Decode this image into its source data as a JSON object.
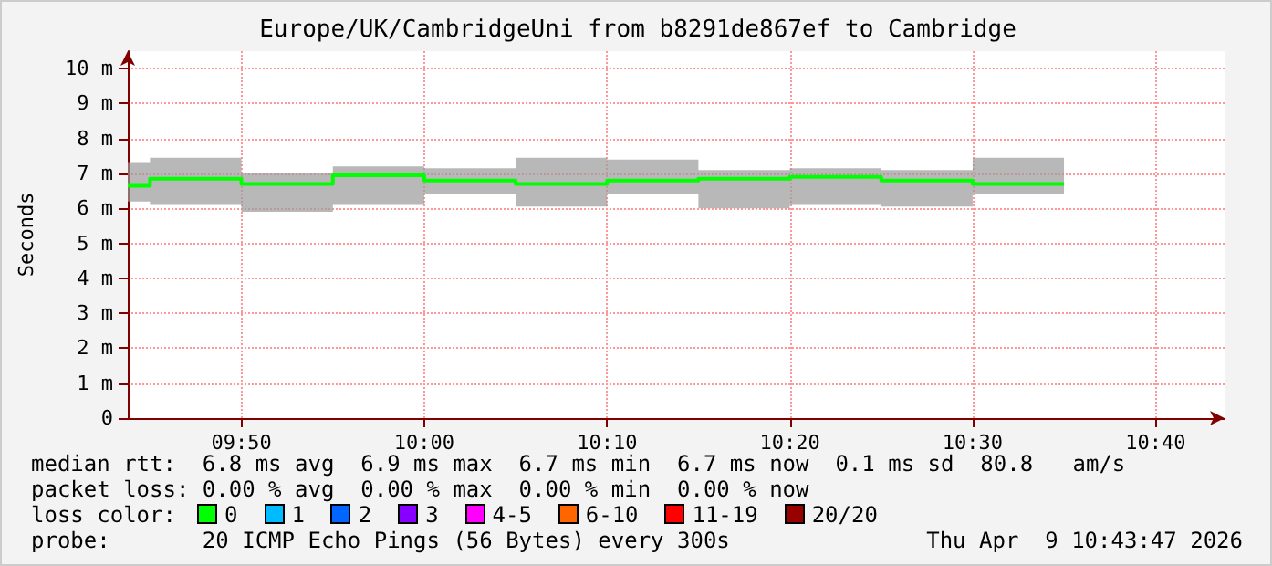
{
  "chart_data": {
    "type": "step",
    "title": "Europe/UK/CambridgeUni from b8291de867ef to Cambridge",
    "ylabel": "Seconds",
    "x": [
      9.7297,
      9.75,
      9.8333,
      9.9167,
      10,
      10.0833,
      10.1667,
      10.25,
      10.3333,
      10.4167,
      10.5,
      10.5833
    ],
    "series": [
      {
        "color": "#00ff00",
        "values": [
          6.65,
          6.85,
          6.7,
          6.95,
          6.8,
          6.7,
          6.8,
          6.85,
          6.9,
          6.8,
          6.7,
          6.7
        ],
        "lower": [
          6.2,
          6.1,
          5.9,
          6.1,
          6.4,
          6.05,
          6.4,
          6.0,
          6.1,
          6.05,
          6.4,
          6.4
        ],
        "upper": [
          7.3,
          7.45,
          7.0,
          7.2,
          7.15,
          7.45,
          7.4,
          7.1,
          7.15,
          7.1,
          7.45,
          7.45
        ]
      }
    ],
    "xlim": [
      9.7297,
      10.7297
    ],
    "xticks": [
      {
        "value": 9.8333,
        "label": "09:50"
      },
      {
        "value": 10,
        "label": "10:00"
      },
      {
        "value": 10.1667,
        "label": "10:10"
      },
      {
        "value": 10.3333,
        "label": "10:20"
      },
      {
        "value": 10.5,
        "label": "10:30"
      },
      {
        "value": 10.6667,
        "label": "10:40"
      }
    ],
    "ylim": [
      0,
      10.5
    ],
    "yticks": [
      0,
      {
        "value": 1,
        "label": "1 m"
      },
      {
        "value": 2,
        "label": "2 m"
      },
      {
        "value": 3,
        "label": "3 m"
      },
      {
        "value": 4,
        "label": "4 m"
      },
      {
        "value": 5,
        "label": "5 m"
      },
      {
        "value": 6,
        "label": "6 m"
      },
      {
        "value": 7,
        "label": "7 m"
      },
      {
        "value": 8,
        "label": "8 m"
      },
      {
        "value": 9,
        "label": "9 m"
      },
      {
        "value": 10,
        "label": "10 m"
      }
    ],
    "grid": true,
    "marker": "none",
    "line_style": "solid",
    "annotations": [
      "median rtt:  6.8 ms avg  6.9 ms max  6.7 ms min  6.7 ms now  0.1 ms sd  80.8   am/s",
      "packet loss: 0.00 % avg  0.00 % max  0.00 % min  0.00 % now",
      "loss color:",
      "0",
      "1",
      "2",
      "3",
      "4-5",
      "6-10",
      "11-19",
      "20/20",
      "probe:       20 ICMP Echo Pings (56 Bytes) every 300s",
      "Thu Apr  9 10:43:47 2026"
    ]
  }
}
